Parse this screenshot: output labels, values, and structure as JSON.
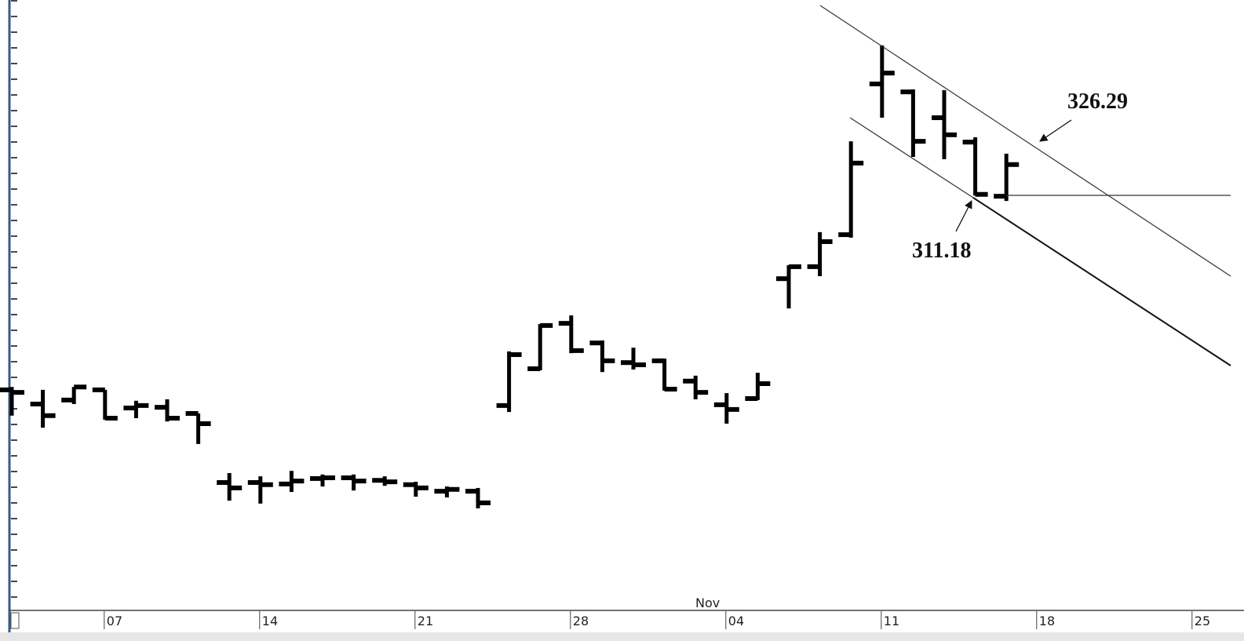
{
  "chart_data": {
    "type": "ohlc",
    "categories": [
      null,
      null,
      null,
      "07",
      null,
      null,
      null,
      null,
      "14",
      null,
      null,
      null,
      null,
      "21",
      null,
      null,
      null,
      null,
      "28",
      null,
      null,
      null,
      null,
      "04",
      null,
      null,
      null,
      null,
      "11",
      null,
      null,
      null,
      null,
      "18",
      null,
      null,
      null,
      null,
      "25",
      null
    ],
    "month_label": "Nov",
    "open": [
      257.7,
      253.8,
      254.9,
      257.7,
      252.7,
      252.9,
      251.2,
      232.2,
      232.2,
      231.8,
      233.3,
      233.5,
      232.8,
      231.6,
      229.8,
      229.8,
      253.4,
      263.5,
      276.0,
      270.6,
      265.2,
      265.7,
      260.1,
      253.6,
      255.3,
      288.3,
      291.6,
      300.4,
      341.9,
      339.7,
      332.6,
      325.9,
      311.0,
      null,
      null,
      null,
      null,
      null,
      null,
      null
    ],
    "high": [
      258.5,
      257.7,
      258.5,
      257.7,
      254.7,
      255.1,
      251.2,
      234.8,
      233.9,
      235.4,
      234.4,
      234.4,
      233.9,
      232.4,
      231.1,
      230.7,
      268.3,
      275.8,
      278.2,
      271.3,
      269.3,
      266.3,
      261.6,
      256.8,
      262.4,
      292.0,
      301.1,
      326.1,
      352.5,
      340.4,
      340.2,
      327.2,
      322.7,
      null,
      null,
      null,
      null,
      null,
      null,
      null
    ],
    "low": [
      250.6,
      247.3,
      253.8,
      249.5,
      249.9,
      249.0,
      242.8,
      227.2,
      226.4,
      229.6,
      231.1,
      230.0,
      231.3,
      228.3,
      228.1,
      225.1,
      251.6,
      263.1,
      267.8,
      262.6,
      263.3,
      257.5,
      255.1,
      248.4,
      254.9,
      280.1,
      289.0,
      299.6,
      332.6,
      321.8,
      321.2,
      311.18,
      309.7,
      null,
      null,
      null,
      null,
      null,
      null,
      null
    ],
    "close": [
      257.0,
      250.6,
      258.5,
      249.9,
      253.4,
      249.9,
      248.4,
      230.7,
      231.6,
      232.6,
      233.5,
      232.6,
      232.4,
      230.7,
      230.3,
      226.6,
      267.4,
      275.4,
      268.5,
      265.7,
      264.6,
      257.9,
      257.0,
      252.3,
      259.4,
      291.6,
      298.5,
      320.1,
      344.9,
      326.1,
      327.9,
      311.5,
      319.7,
      null,
      null,
      null,
      null,
      null,
      null,
      null
    ],
    "color": "#000000",
    "ylim": [
      197,
      365
    ],
    "annotations": [
      {
        "text": "326.29"
      },
      {
        "text": "311.18"
      }
    ]
  }
}
